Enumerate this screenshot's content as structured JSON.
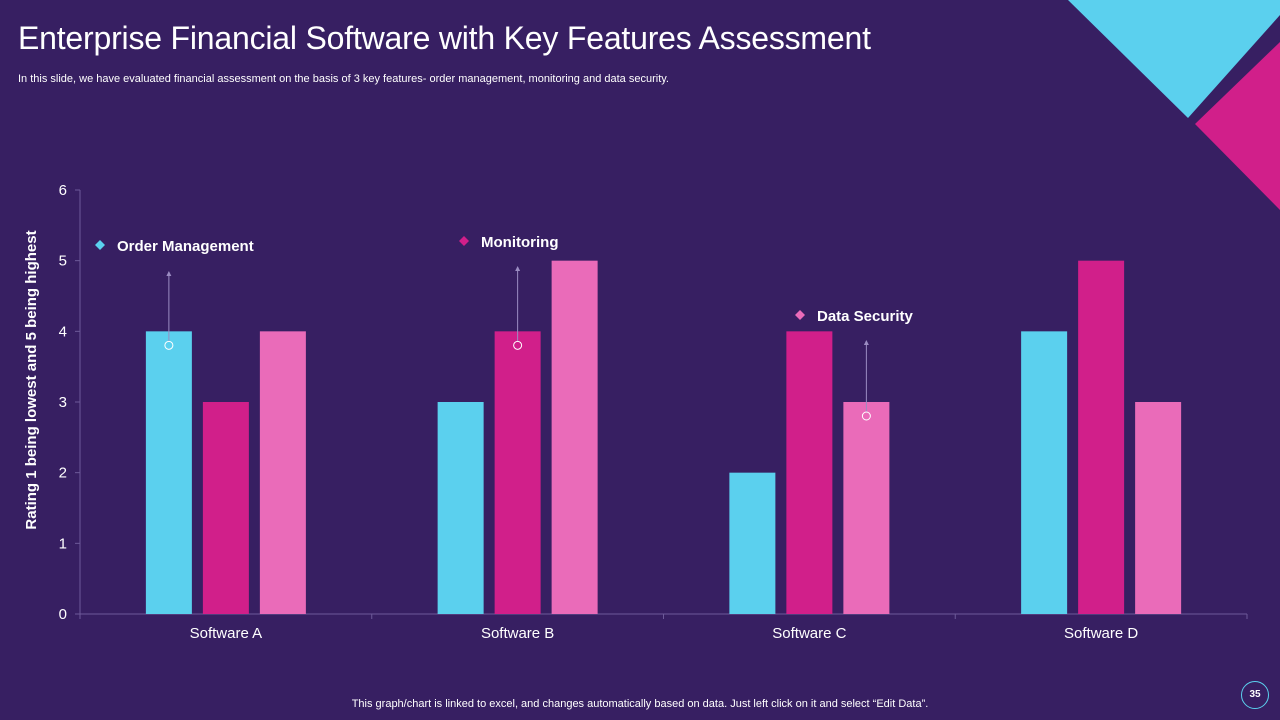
{
  "slide": {
    "title": "Enterprise Financial Software with Key Features Assessment",
    "subtitle": "In this slide, we have evaluated financial assessment on the basis of 3 key features- order management, monitoring and  data security.",
    "footer_note": "This graph/chart is linked to excel,  and changes automatically based on data. Just left click on it and select “Edit Data”.",
    "page_number": "35"
  },
  "colors": {
    "background": "#371f62",
    "order_management": "#5bd0ee",
    "monitoring": "#d11f8a",
    "data_security": "#ea6bb9",
    "deco_cyan": "#5bd0ee",
    "deco_magenta": "#d11f8a"
  },
  "chart_data": {
    "type": "bar",
    "categories": [
      "Software A",
      "Software B",
      "Software C",
      "Software D"
    ],
    "series": [
      {
        "name": "Order Management",
        "values": [
          4,
          3,
          2,
          4
        ]
      },
      {
        "name": "Monitoring",
        "values": [
          3,
          4,
          4,
          5
        ]
      },
      {
        "name": "Data Security",
        "values": [
          4,
          5,
          3,
          3
        ]
      }
    ],
    "ylabel": "Rating 1 being lowest and 5 being highest",
    "xlabel": "",
    "ylim": [
      0,
      6
    ],
    "yticks": [
      0,
      1,
      2,
      3,
      4,
      5,
      6
    ],
    "grid": false,
    "legend": "callouts above bars"
  }
}
